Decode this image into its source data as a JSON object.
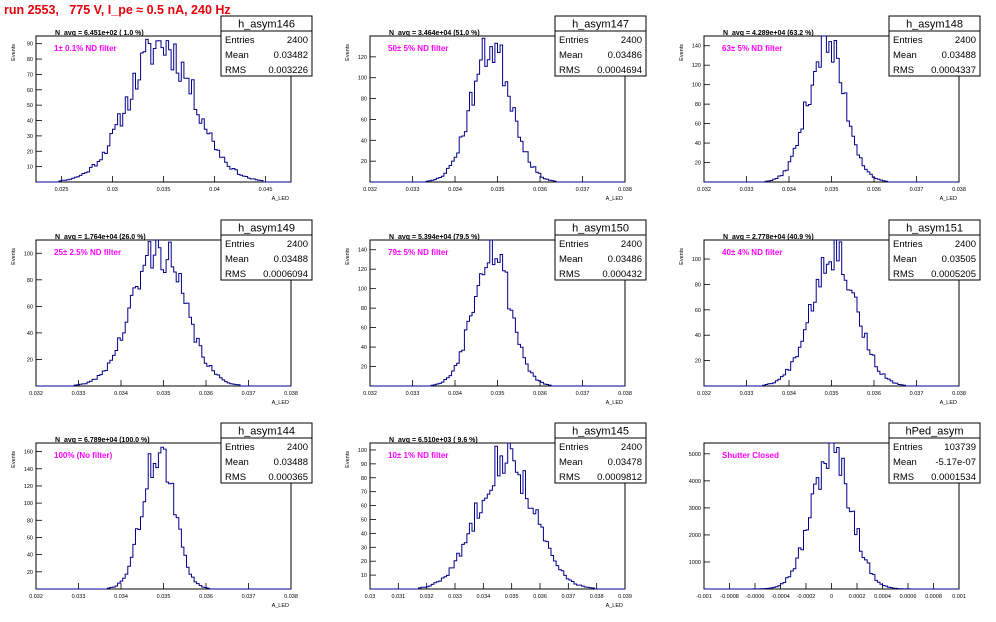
{
  "page_title": "run 2553,   775 V, I_pe ≈ 0.5 nA, 240 Hz",
  "colors": {
    "title": "#e8000b",
    "histogram": "#00008b",
    "filter_label": "#ff00ff",
    "frame": "#000000"
  },
  "chart_data": [
    {
      "type": "bar",
      "name": "h_asym146",
      "title": "N_avg = 6.451e+02 ( 1.0 %)",
      "annotation": "1± 0.1% ND filter",
      "stats": [
        {
          "label": "Entries",
          "value": "2400"
        },
        {
          "label": "Mean",
          "value": "0.03482"
        },
        {
          "label": "RMS",
          "value": "0.003226"
        }
      ],
      "xlabel": "A_LED",
      "ylabel": "Events",
      "xlim": [
        0.0225,
        0.0475
      ],
      "ylim": [
        0,
        95
      ],
      "xticks": [
        0.025,
        0.03,
        0.035,
        0.04,
        0.045
      ],
      "xtick_labels": [
        "0.025",
        "0.03",
        "0.035",
        "0.04",
        "0.045"
      ],
      "yticks": [
        10,
        20,
        30,
        40,
        50,
        60,
        70,
        80,
        90
      ],
      "ytick_labels": [
        "10",
        "20",
        "30",
        "40",
        "50",
        "60",
        "70",
        "80",
        "90"
      ],
      "mean": 0.03482,
      "rms": 0.003226,
      "peak": 90,
      "bins": 100,
      "seed": 11
    },
    {
      "type": "bar",
      "name": "h_asym147",
      "title": "N_avg = 3.464e+04 (51.0 %)",
      "annotation": "50± 5% ND filter",
      "stats": [
        {
          "label": "Entries",
          "value": "2400"
        },
        {
          "label": "Mean",
          "value": "0.03486"
        },
        {
          "label": "RMS",
          "value": "0.0004694"
        }
      ],
      "xlabel": "A_LED",
      "ylabel": "Events",
      "xlim": [
        0.032,
        0.038
      ],
      "ylim": [
        0,
        140
      ],
      "xticks": [
        0.032,
        0.033,
        0.034,
        0.035,
        0.036,
        0.037,
        0.038
      ],
      "xtick_labels": [
        "0.032",
        "0.033",
        "0.034",
        "0.035",
        "0.036",
        "0.037",
        "0.038"
      ],
      "yticks": [
        20,
        40,
        60,
        80,
        100,
        120
      ],
      "ytick_labels": [
        "20",
        "40",
        "60",
        "80",
        "100",
        "120"
      ],
      "mean": 0.03486,
      "rms": 0.0004694,
      "peak": 130,
      "bins": 100,
      "seed": 23
    },
    {
      "type": "bar",
      "name": "h_asym148",
      "title": "N_avg = 4.289e+04 (63.2 %)",
      "annotation": "63± 5% ND filter",
      "stats": [
        {
          "label": "Entries",
          "value": "2400"
        },
        {
          "label": "Mean",
          "value": "0.03488"
        },
        {
          "label": "RMS",
          "value": "0.0004337"
        }
      ],
      "xlabel": "A_LED",
      "ylabel": "Events",
      "xlim": [
        0.032,
        0.038
      ],
      "ylim": [
        0,
        150
      ],
      "xticks": [
        0.032,
        0.033,
        0.034,
        0.035,
        0.036,
        0.037,
        0.038
      ],
      "xtick_labels": [
        "0.032",
        "0.033",
        "0.034",
        "0.035",
        "0.036",
        "0.037",
        "0.038"
      ],
      "yticks": [
        20,
        40,
        60,
        80,
        100,
        120,
        140
      ],
      "ytick_labels": [
        "20",
        "40",
        "60",
        "80",
        "100",
        "120",
        "140"
      ],
      "mean": 0.03488,
      "rms": 0.0004337,
      "peak": 142,
      "bins": 100,
      "seed": 37
    },
    {
      "type": "bar",
      "name": "h_asym149",
      "title": "N_avg = 1.764e+04 (26.0 %)",
      "annotation": "25± 2.5% ND filter",
      "stats": [
        {
          "label": "Entries",
          "value": "2400"
        },
        {
          "label": "Mean",
          "value": "0.03488"
        },
        {
          "label": "RMS",
          "value": "0.0006094"
        }
      ],
      "xlabel": "A_LED",
      "ylabel": "Events",
      "xlim": [
        0.032,
        0.038
      ],
      "ylim": [
        0,
        110
      ],
      "xticks": [
        0.032,
        0.033,
        0.034,
        0.035,
        0.036,
        0.037,
        0.038
      ],
      "xtick_labels": [
        "0.032",
        "0.033",
        "0.034",
        "0.035",
        "0.036",
        "0.037",
        "0.038"
      ],
      "yticks": [
        20,
        40,
        60,
        80,
        100
      ],
      "ytick_labels": [
        "20",
        "40",
        "60",
        "80",
        "100"
      ],
      "mean": 0.03488,
      "rms": 0.0006094,
      "peak": 104,
      "bins": 100,
      "seed": 41
    },
    {
      "type": "bar",
      "name": "h_asym150",
      "title": "N_avg = 5.394e+04 (79.5 %)",
      "annotation": "79± 5% ND filter",
      "stats": [
        {
          "label": "Entries",
          "value": "2400"
        },
        {
          "label": "Mean",
          "value": "0.03486"
        },
        {
          "label": "RMS",
          "value": "0.000432"
        }
      ],
      "xlabel": "A_LED",
      "ylabel": "Events",
      "xlim": [
        0.032,
        0.038
      ],
      "ylim": [
        0,
        150
      ],
      "xticks": [
        0.032,
        0.033,
        0.034,
        0.035,
        0.036,
        0.037,
        0.038
      ],
      "xtick_labels": [
        "0.032",
        "0.033",
        "0.034",
        "0.035",
        "0.036",
        "0.037",
        "0.038"
      ],
      "yticks": [
        20,
        40,
        60,
        80,
        100,
        120,
        140
      ],
      "ytick_labels": [
        "20",
        "40",
        "60",
        "80",
        "100",
        "120",
        "140"
      ],
      "mean": 0.03486,
      "rms": 0.000432,
      "peak": 145,
      "bins": 100,
      "seed": 53
    },
    {
      "type": "bar",
      "name": "h_asym151",
      "title": "N_avg = 2.778e+04 (40.9 %)",
      "annotation": "40± 4% ND filter",
      "stats": [
        {
          "label": "Entries",
          "value": "2400"
        },
        {
          "label": "Mean",
          "value": "0.03505"
        },
        {
          "label": "RMS",
          "value": "0.0005205"
        }
      ],
      "xlabel": "A_LED",
      "ylabel": "Events",
      "xlim": [
        0.032,
        0.038
      ],
      "ylim": [
        0,
        115
      ],
      "xticks": [
        0.032,
        0.033,
        0.034,
        0.035,
        0.036,
        0.037,
        0.038
      ],
      "xtick_labels": [
        "0.032",
        "0.033",
        "0.034",
        "0.035",
        "0.036",
        "0.037",
        "0.038"
      ],
      "yticks": [
        20,
        40,
        60,
        80,
        100
      ],
      "ytick_labels": [
        "20",
        "40",
        "60",
        "80",
        "100"
      ],
      "mean": 0.03505,
      "rms": 0.0005205,
      "peak": 108,
      "bins": 100,
      "seed": 67
    },
    {
      "type": "bar",
      "name": "h_asym144",
      "title": "N_avg = 6.789e+04 (100.0 %)",
      "annotation": "100% (No filter)",
      "stats": [
        {
          "label": "Entries",
          "value": "2400"
        },
        {
          "label": "Mean",
          "value": "0.03488"
        },
        {
          "label": "RMS",
          "value": "0.000365"
        }
      ],
      "xlabel": "A_LED",
      "ylabel": "Events",
      "xlim": [
        0.032,
        0.038
      ],
      "ylim": [
        0,
        170
      ],
      "xticks": [
        0.032,
        0.033,
        0.034,
        0.035,
        0.036,
        0.037,
        0.038
      ],
      "xtick_labels": [
        "0.032",
        "0.033",
        "0.034",
        "0.035",
        "0.036",
        "0.037",
        "0.038"
      ],
      "yticks": [
        20,
        40,
        60,
        80,
        100,
        120,
        140,
        160
      ],
      "ytick_labels": [
        "20",
        "40",
        "60",
        "80",
        "100",
        "120",
        "140",
        "160"
      ],
      "mean": 0.03488,
      "rms": 0.000365,
      "peak": 162,
      "bins": 100,
      "seed": 71
    },
    {
      "type": "bar",
      "name": "h_asym145",
      "title": "N_avg = 6.510e+03 ( 9.6 %)",
      "annotation": "10± 1% ND filter",
      "stats": [
        {
          "label": "Entries",
          "value": "2400"
        },
        {
          "label": "Mean",
          "value": "0.03478"
        },
        {
          "label": "RMS",
          "value": "0.0009812"
        }
      ],
      "xlabel": "A_LED",
      "ylabel": "Events",
      "xlim": [
        0.03,
        0.039
      ],
      "ylim": [
        0,
        105
      ],
      "xticks": [
        0.03,
        0.031,
        0.032,
        0.033,
        0.034,
        0.035,
        0.036,
        0.037,
        0.038,
        0.039
      ],
      "xtick_labels": [
        "0.03",
        "0.031",
        "0.032",
        "0.033",
        "0.034",
        "0.035",
        "0.036",
        "0.037",
        "0.038",
        "0.039"
      ],
      "yticks": [
        10,
        20,
        30,
        40,
        50,
        60,
        70,
        80,
        90,
        100
      ],
      "ytick_labels": [
        "10",
        "20",
        "30",
        "40",
        "50",
        "60",
        "70",
        "80",
        "90",
        "100"
      ],
      "mean": 0.03478,
      "rms": 0.0009812,
      "peak": 96,
      "bins": 100,
      "seed": 83
    },
    {
      "type": "bar",
      "name": "hPed_asym",
      "title": "",
      "annotation": "Shutter Closed",
      "stats": [
        {
          "label": "Entries",
          "value": "103739"
        },
        {
          "label": "Mean",
          "value": "-5.17e-07"
        },
        {
          "label": "RMS",
          "value": "0.0001534"
        }
      ],
      "xlabel": "",
      "ylabel": "",
      "xlim": [
        -0.001,
        0.001
      ],
      "ylim": [
        0,
        5400
      ],
      "xticks": [
        -0.001,
        -0.0008,
        -0.0006,
        -0.0004,
        -0.0002,
        0,
        0.0002,
        0.0004,
        0.0006,
        0.0008,
        0.001
      ],
      "xtick_labels": [
        "-0.001",
        "-0.0008",
        "-0.0006",
        "-0.0004",
        "-0.0002",
        "0",
        "0.0002",
        "0.0004",
        "0.0006",
        "0.0008",
        "0.001"
      ],
      "yticks": [
        1000,
        2000,
        3000,
        4000,
        5000
      ],
      "ytick_labels": [
        "1000",
        "2000",
        "3000",
        "4000",
        "5000"
      ],
      "mean": -5.17e-07,
      "rms": 0.0001534,
      "peak": 5050,
      "bins": 100,
      "seed": 97
    }
  ]
}
